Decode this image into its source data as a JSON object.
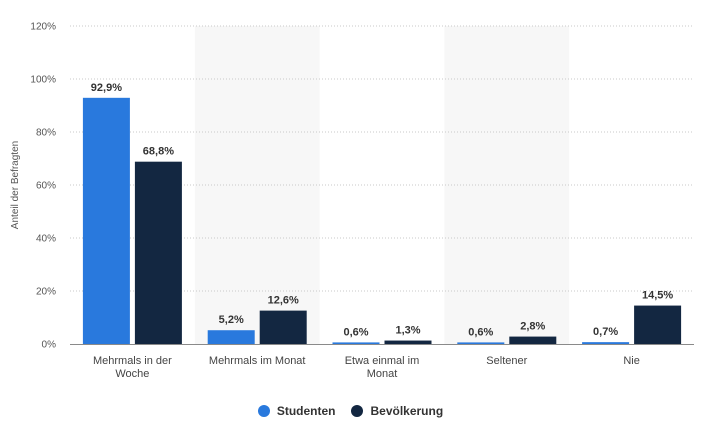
{
  "chart_data": {
    "type": "bar",
    "categories": [
      "Mehrmals in der Woche",
      "Mehrmals im Monat",
      "Etwa einmal im Monat",
      "Seltener",
      "Nie"
    ],
    "category_lines": [
      [
        "Mehrmals in der",
        "Woche"
      ],
      [
        "Mehrmals im Monat"
      ],
      [
        "Etwa einmal im",
        "Monat"
      ],
      [
        "Seltener"
      ],
      [
        "Nie"
      ]
    ],
    "series": [
      {
        "name": "Studenten",
        "color": "#2979dd",
        "values": [
          92.9,
          5.2,
          0.6,
          0.6,
          0.7
        ],
        "labels": [
          "92,9%",
          "5,2%",
          "0,6%",
          "0,6%",
          "0,7%"
        ]
      },
      {
        "name": "Bevölkerung",
        "color": "#132741",
        "values": [
          68.8,
          12.6,
          1.3,
          2.8,
          14.5
        ],
        "labels": [
          "68,8%",
          "12,6%",
          "1,3%",
          "2,8%",
          "14,5%"
        ]
      }
    ],
    "ylabel": "Anteil der Befragten",
    "ylim": [
      0,
      120
    ],
    "yticks": [
      0,
      20,
      40,
      60,
      80,
      100,
      120
    ],
    "ytick_labels": [
      "0%",
      "20%",
      "40%",
      "60%",
      "80%",
      "100%",
      "120%"
    ],
    "grid": true,
    "legend_position": "bottom-center"
  }
}
